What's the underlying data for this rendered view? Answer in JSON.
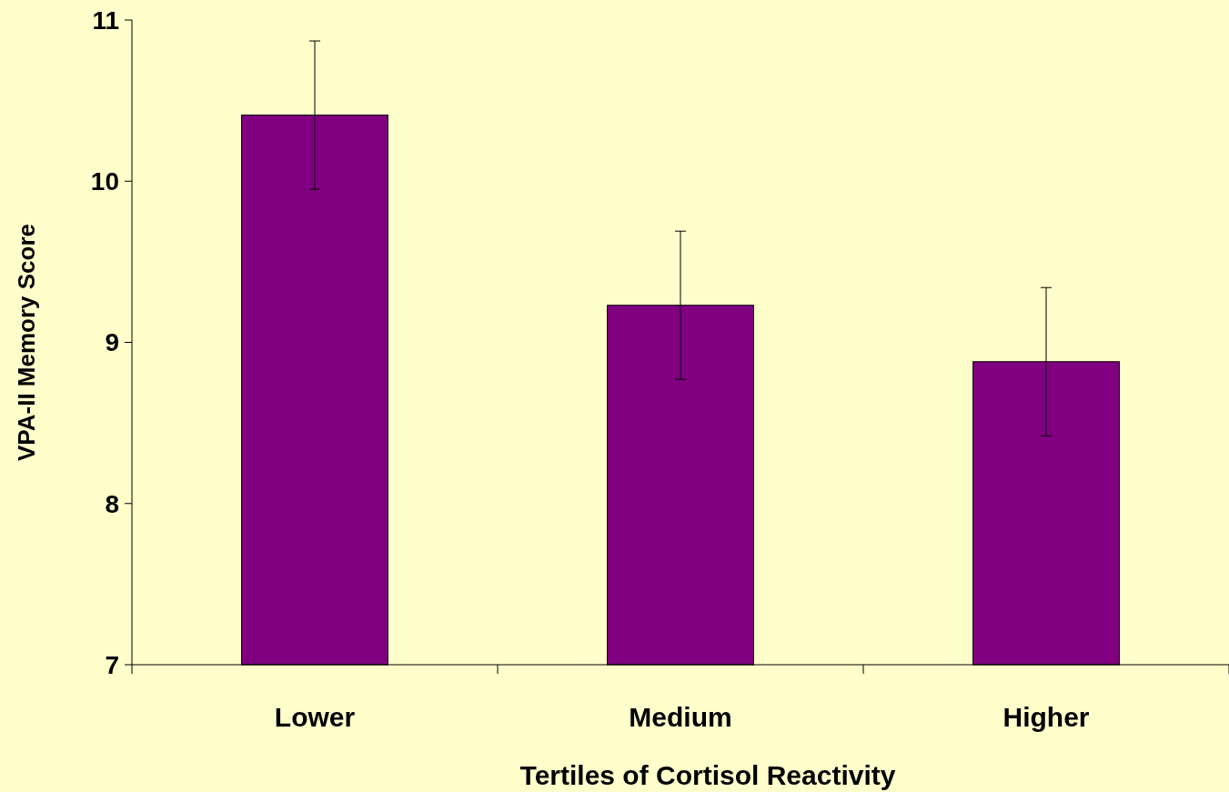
{
  "chart_data": {
    "type": "bar",
    "xlabel": "Tertiles of Cortisol Reactivity",
    "ylabel": "VPA-II Memory Score",
    "categories": [
      "Lower",
      "Medium",
      "Higher"
    ],
    "values": [
      10.41,
      9.23,
      8.88
    ],
    "errors": [
      0.46,
      0.46,
      0.46
    ],
    "color": "#800080",
    "ylim": [
      7,
      11
    ],
    "yticks": [
      7,
      8,
      9,
      10,
      11
    ],
    "grid": false
  }
}
